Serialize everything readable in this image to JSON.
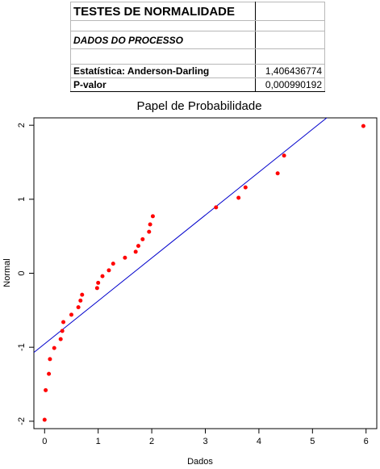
{
  "table": {
    "title": "TESTES DE NORMALIDADE",
    "subtitle": "DADOS DO PROCESSO",
    "stat_label": "Estatística: Anderson-Darling",
    "stat_value": "1,406436774",
    "p_label": "P-valor",
    "p_value": "0,000990192"
  },
  "colors": {
    "points": "#ff0000",
    "line": "#0000cc",
    "axis": "#000000"
  },
  "chart_data": {
    "type": "scatter",
    "title": "Papel de Probabilidade",
    "xlabel": "Dados",
    "ylabel": "Normal",
    "xlim": [
      -0.2,
      6.2
    ],
    "ylim": [
      -2.1,
      2.1
    ],
    "x_ticks": [
      0,
      1,
      2,
      3,
      4,
      5,
      6
    ],
    "x_tick_labels": [
      "0",
      "1",
      "2",
      "3",
      "4",
      "5",
      "6"
    ],
    "y_ticks": [
      -2,
      -1,
      0,
      1,
      2
    ],
    "y_tick_labels": [
      "-2",
      "-1",
      "0",
      "1",
      "2"
    ],
    "grid": false,
    "points": [
      {
        "x": 0.0,
        "y": -1.98
      },
      {
        "x": 0.02,
        "y": -1.58
      },
      {
        "x": 0.08,
        "y": -1.36
      },
      {
        "x": 0.1,
        "y": -1.16
      },
      {
        "x": 0.18,
        "y": -1.01
      },
      {
        "x": 0.3,
        "y": -0.89
      },
      {
        "x": 0.33,
        "y": -0.78
      },
      {
        "x": 0.35,
        "y": -0.66
      },
      {
        "x": 0.5,
        "y": -0.56
      },
      {
        "x": 0.63,
        "y": -0.46
      },
      {
        "x": 0.67,
        "y": -0.37
      },
      {
        "x": 0.7,
        "y": -0.29
      },
      {
        "x": 0.98,
        "y": -0.2
      },
      {
        "x": 1.0,
        "y": -0.13
      },
      {
        "x": 1.08,
        "y": -0.04
      },
      {
        "x": 1.2,
        "y": 0.04
      },
      {
        "x": 1.28,
        "y": 0.13
      },
      {
        "x": 1.5,
        "y": 0.21
      },
      {
        "x": 1.7,
        "y": 0.29
      },
      {
        "x": 1.75,
        "y": 0.37
      },
      {
        "x": 1.83,
        "y": 0.46
      },
      {
        "x": 1.95,
        "y": 0.56
      },
      {
        "x": 1.97,
        "y": 0.66
      },
      {
        "x": 2.02,
        "y": 0.77
      },
      {
        "x": 3.2,
        "y": 0.89
      },
      {
        "x": 3.62,
        "y": 1.02
      },
      {
        "x": 3.75,
        "y": 1.16
      },
      {
        "x": 4.35,
        "y": 1.35
      },
      {
        "x": 4.47,
        "y": 1.59
      },
      {
        "x": 5.95,
        "y": 1.99
      }
    ],
    "fit_line": {
      "x": [
        -0.2,
        5.3
      ],
      "y": [
        -1.07,
        2.12
      ]
    }
  }
}
